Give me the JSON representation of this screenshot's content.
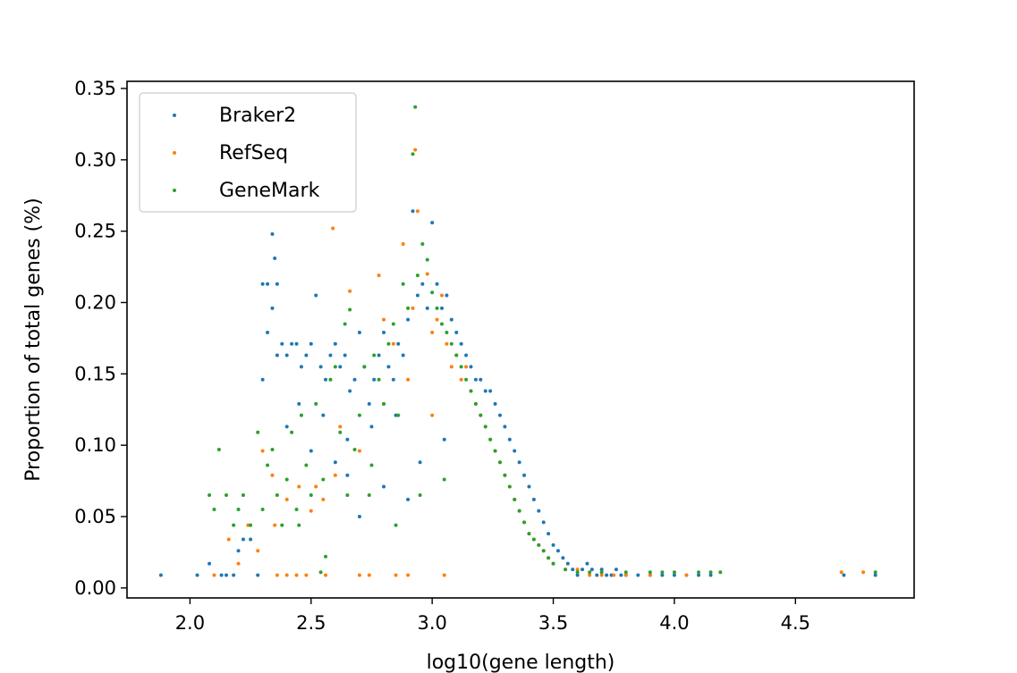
{
  "chart_data": {
    "type": "scatter",
    "xlabel": "log10(gene length)",
    "ylabel": "Proportion of total genes (%)",
    "xlim": [
      1.74,
      4.99
    ],
    "ylim": [
      -0.007,
      0.355
    ],
    "x_ticks": [
      2.0,
      2.5,
      3.0,
      3.5,
      4.0,
      4.5
    ],
    "x_tick_labels": [
      "2.0",
      "2.5",
      "3.0",
      "3.5",
      "4.0",
      "4.5"
    ],
    "y_ticks": [
      0.0,
      0.05,
      0.1,
      0.15,
      0.2,
      0.25,
      0.3,
      0.35
    ],
    "y_tick_labels": [
      "0.00",
      "0.05",
      "0.10",
      "0.15",
      "0.20",
      "0.25",
      "0.30",
      "0.35"
    ],
    "grid": false,
    "legend_position": "top-left",
    "series": [
      {
        "name": "Braker2",
        "color": "#1f77b4",
        "points": [
          [
            1.88,
            0.009
          ],
          [
            2.03,
            0.009
          ],
          [
            2.08,
            0.017
          ],
          [
            2.13,
            0.009
          ],
          [
            2.15,
            0.009
          ],
          [
            2.18,
            0.009
          ],
          [
            2.2,
            0.026
          ],
          [
            2.22,
            0.034
          ],
          [
            2.25,
            0.034
          ],
          [
            2.28,
            0.009
          ],
          [
            2.3,
            0.146
          ],
          [
            2.3,
            0.213
          ],
          [
            2.32,
            0.213
          ],
          [
            2.34,
            0.248
          ],
          [
            2.35,
            0.231
          ],
          [
            2.36,
            0.213
          ],
          [
            2.32,
            0.179
          ],
          [
            2.34,
            0.196
          ],
          [
            2.36,
            0.163
          ],
          [
            2.38,
            0.171
          ],
          [
            2.4,
            0.163
          ],
          [
            2.42,
            0.171
          ],
          [
            2.44,
            0.171
          ],
          [
            2.46,
            0.155
          ],
          [
            2.48,
            0.163
          ],
          [
            2.5,
            0.171
          ],
          [
            2.52,
            0.205
          ],
          [
            2.54,
            0.155
          ],
          [
            2.56,
            0.146
          ],
          [
            2.58,
            0.163
          ],
          [
            2.6,
            0.171
          ],
          [
            2.62,
            0.155
          ],
          [
            2.64,
            0.163
          ],
          [
            2.66,
            0.138
          ],
          [
            2.68,
            0.146
          ],
          [
            2.7,
            0.179
          ],
          [
            2.72,
            0.155
          ],
          [
            2.74,
            0.129
          ],
          [
            2.76,
            0.146
          ],
          [
            2.78,
            0.163
          ],
          [
            2.8,
            0.179
          ],
          [
            2.82,
            0.155
          ],
          [
            2.84,
            0.146
          ],
          [
            2.86,
            0.171
          ],
          [
            2.88,
            0.163
          ],
          [
            2.9,
            0.188
          ],
          [
            2.92,
            0.264
          ],
          [
            2.94,
            0.205
          ],
          [
            2.96,
            0.213
          ],
          [
            2.98,
            0.196
          ],
          [
            3.0,
            0.256
          ],
          [
            3.02,
            0.213
          ],
          [
            3.04,
            0.196
          ],
          [
            3.06,
            0.205
          ],
          [
            3.08,
            0.188
          ],
          [
            3.1,
            0.179
          ],
          [
            3.12,
            0.171
          ],
          [
            3.14,
            0.163
          ],
          [
            3.16,
            0.155
          ],
          [
            3.18,
            0.146
          ],
          [
            3.2,
            0.146
          ],
          [
            3.22,
            0.138
          ],
          [
            3.24,
            0.138
          ],
          [
            3.26,
            0.129
          ],
          [
            3.28,
            0.121
          ],
          [
            3.3,
            0.113
          ],
          [
            3.32,
            0.104
          ],
          [
            3.34,
            0.096
          ],
          [
            3.36,
            0.088
          ],
          [
            3.38,
            0.079
          ],
          [
            3.4,
            0.071
          ],
          [
            3.42,
            0.062
          ],
          [
            3.44,
            0.054
          ],
          [
            3.46,
            0.046
          ],
          [
            3.48,
            0.038
          ],
          [
            3.5,
            0.03
          ],
          [
            3.52,
            0.026
          ],
          [
            3.54,
            0.021
          ],
          [
            3.56,
            0.017
          ],
          [
            3.58,
            0.013
          ],
          [
            3.6,
            0.009
          ],
          [
            3.62,
            0.013
          ],
          [
            3.64,
            0.017
          ],
          [
            3.66,
            0.013
          ],
          [
            3.68,
            0.009
          ],
          [
            3.7,
            0.013
          ],
          [
            3.72,
            0.009
          ],
          [
            3.74,
            0.009
          ],
          [
            3.76,
            0.013
          ],
          [
            3.78,
            0.009
          ],
          [
            3.8,
            0.009
          ],
          [
            3.85,
            0.009
          ],
          [
            3.9,
            0.009
          ],
          [
            3.95,
            0.009
          ],
          [
            4.0,
            0.009
          ],
          [
            4.05,
            0.009
          ],
          [
            4.1,
            0.009
          ],
          [
            4.15,
            0.009
          ],
          [
            4.7,
            0.009
          ],
          [
            4.83,
            0.009
          ],
          [
            2.45,
            0.129
          ],
          [
            2.55,
            0.121
          ],
          [
            2.65,
            0.104
          ],
          [
            2.75,
            0.113
          ],
          [
            2.85,
            0.121
          ],
          [
            2.95,
            0.088
          ],
          [
            3.05,
            0.104
          ],
          [
            2.7,
            0.05
          ],
          [
            2.6,
            0.088
          ],
          [
            2.5,
            0.096
          ],
          [
            2.4,
            0.113
          ],
          [
            2.65,
            0.079
          ],
          [
            2.8,
            0.071
          ],
          [
            2.9,
            0.062
          ]
        ]
      },
      {
        "name": "RefSeq",
        "color": "#ff7f0e",
        "points": [
          [
            2.1,
            0.009
          ],
          [
            2.16,
            0.034
          ],
          [
            2.2,
            0.017
          ],
          [
            2.24,
            0.044
          ],
          [
            2.28,
            0.026
          ],
          [
            2.3,
            0.096
          ],
          [
            2.34,
            0.079
          ],
          [
            2.36,
            0.009
          ],
          [
            2.4,
            0.009
          ],
          [
            2.44,
            0.009
          ],
          [
            2.48,
            0.009
          ],
          [
            2.52,
            0.071
          ],
          [
            2.56,
            0.009
          ],
          [
            2.59,
            0.252
          ],
          [
            2.62,
            0.113
          ],
          [
            2.66,
            0.208
          ],
          [
            2.7,
            0.009
          ],
          [
            2.74,
            0.009
          ],
          [
            2.78,
            0.219
          ],
          [
            2.8,
            0.188
          ],
          [
            2.84,
            0.171
          ],
          [
            2.88,
            0.241
          ],
          [
            2.92,
            0.196
          ],
          [
            2.93,
            0.307
          ],
          [
            2.94,
            0.264
          ],
          [
            2.98,
            0.22
          ],
          [
            3.0,
            0.179
          ],
          [
            3.02,
            0.188
          ],
          [
            3.04,
            0.205
          ],
          [
            3.06,
            0.171
          ],
          [
            3.08,
            0.155
          ],
          [
            3.1,
            0.163
          ],
          [
            3.12,
            0.146
          ],
          [
            3.14,
            0.155
          ],
          [
            3.16,
            0.138
          ],
          [
            3.18,
            0.129
          ],
          [
            3.2,
            0.121
          ],
          [
            3.22,
            0.113
          ],
          [
            3.24,
            0.104
          ],
          [
            3.26,
            0.096
          ],
          [
            3.28,
            0.088
          ],
          [
            3.3,
            0.079
          ],
          [
            3.32,
            0.071
          ],
          [
            3.34,
            0.062
          ],
          [
            3.36,
            0.054
          ],
          [
            3.38,
            0.046
          ],
          [
            3.4,
            0.038
          ],
          [
            3.42,
            0.034
          ],
          [
            3.44,
            0.03
          ],
          [
            3.46,
            0.026
          ],
          [
            3.48,
            0.021
          ],
          [
            3.5,
            0.017
          ],
          [
            3.55,
            0.013
          ],
          [
            3.6,
            0.013
          ],
          [
            3.65,
            0.009
          ],
          [
            3.7,
            0.009
          ],
          [
            3.75,
            0.009
          ],
          [
            3.8,
            0.009
          ],
          [
            3.9,
            0.009
          ],
          [
            4.05,
            0.009
          ],
          [
            4.69,
            0.011
          ],
          [
            4.78,
            0.011
          ],
          [
            2.5,
            0.054
          ],
          [
            2.6,
            0.079
          ],
          [
            2.7,
            0.096
          ],
          [
            2.8,
            0.129
          ],
          [
            2.9,
            0.146
          ],
          [
            3.0,
            0.121
          ],
          [
            2.85,
            0.009
          ],
          [
            2.9,
            0.009
          ],
          [
            3.05,
            0.009
          ],
          [
            2.4,
            0.062
          ],
          [
            2.35,
            0.044
          ],
          [
            2.45,
            0.071
          ],
          [
            2.55,
            0.062
          ]
        ]
      },
      {
        "name": "GeneMark",
        "color": "#2ca02c",
        "points": [
          [
            2.08,
            0.065
          ],
          [
            2.1,
            0.055
          ],
          [
            2.12,
            0.097
          ],
          [
            2.15,
            0.065
          ],
          [
            2.18,
            0.044
          ],
          [
            2.2,
            0.055
          ],
          [
            2.22,
            0.065
          ],
          [
            2.25,
            0.044
          ],
          [
            2.28,
            0.109
          ],
          [
            2.3,
            0.055
          ],
          [
            2.32,
            0.086
          ],
          [
            2.34,
            0.097
          ],
          [
            2.36,
            0.065
          ],
          [
            2.38,
            0.044
          ],
          [
            2.4,
            0.076
          ],
          [
            2.42,
            0.109
          ],
          [
            2.44,
            0.055
          ],
          [
            2.46,
            0.121
          ],
          [
            2.48,
            0.086
          ],
          [
            2.5,
            0.065
          ],
          [
            2.52,
            0.129
          ],
          [
            2.54,
            0.011
          ],
          [
            2.56,
            0.022
          ],
          [
            2.58,
            0.146
          ],
          [
            2.6,
            0.155
          ],
          [
            2.62,
            0.109
          ],
          [
            2.64,
            0.185
          ],
          [
            2.66,
            0.195
          ],
          [
            2.68,
            0.097
          ],
          [
            2.7,
            0.121
          ],
          [
            2.72,
            0.155
          ],
          [
            2.74,
            0.065
          ],
          [
            2.76,
            0.163
          ],
          [
            2.78,
            0.146
          ],
          [
            2.8,
            0.129
          ],
          [
            2.82,
            0.171
          ],
          [
            2.84,
            0.185
          ],
          [
            2.86,
            0.121
          ],
          [
            2.88,
            0.213
          ],
          [
            2.9,
            0.196
          ],
          [
            2.92,
            0.304
          ],
          [
            2.93,
            0.337
          ],
          [
            2.94,
            0.219
          ],
          [
            2.96,
            0.241
          ],
          [
            2.98,
            0.23
          ],
          [
            3.0,
            0.207
          ],
          [
            3.02,
            0.196
          ],
          [
            3.04,
            0.185
          ],
          [
            3.06,
            0.179
          ],
          [
            3.08,
            0.171
          ],
          [
            3.1,
            0.163
          ],
          [
            3.12,
            0.155
          ],
          [
            3.14,
            0.146
          ],
          [
            3.16,
            0.138
          ],
          [
            3.18,
            0.129
          ],
          [
            3.2,
            0.121
          ],
          [
            3.22,
            0.113
          ],
          [
            3.24,
            0.104
          ],
          [
            3.26,
            0.096
          ],
          [
            3.28,
            0.088
          ],
          [
            3.3,
            0.079
          ],
          [
            3.32,
            0.071
          ],
          [
            3.34,
            0.062
          ],
          [
            3.36,
            0.054
          ],
          [
            3.38,
            0.046
          ],
          [
            3.4,
            0.038
          ],
          [
            3.42,
            0.034
          ],
          [
            3.44,
            0.03
          ],
          [
            3.46,
            0.026
          ],
          [
            3.48,
            0.021
          ],
          [
            3.5,
            0.017
          ],
          [
            3.55,
            0.013
          ],
          [
            3.6,
            0.011
          ],
          [
            3.65,
            0.011
          ],
          [
            3.7,
            0.011
          ],
          [
            3.8,
            0.011
          ],
          [
            3.9,
            0.011
          ],
          [
            3.95,
            0.011
          ],
          [
            4.0,
            0.011
          ],
          [
            4.1,
            0.011
          ],
          [
            4.15,
            0.011
          ],
          [
            4.19,
            0.011
          ],
          [
            4.83,
            0.011
          ],
          [
            2.95,
            0.065
          ],
          [
            3.05,
            0.076
          ],
          [
            2.85,
            0.044
          ],
          [
            2.75,
            0.086
          ],
          [
            2.65,
            0.065
          ],
          [
            2.55,
            0.076
          ],
          [
            2.45,
            0.044
          ]
        ]
      }
    ]
  }
}
